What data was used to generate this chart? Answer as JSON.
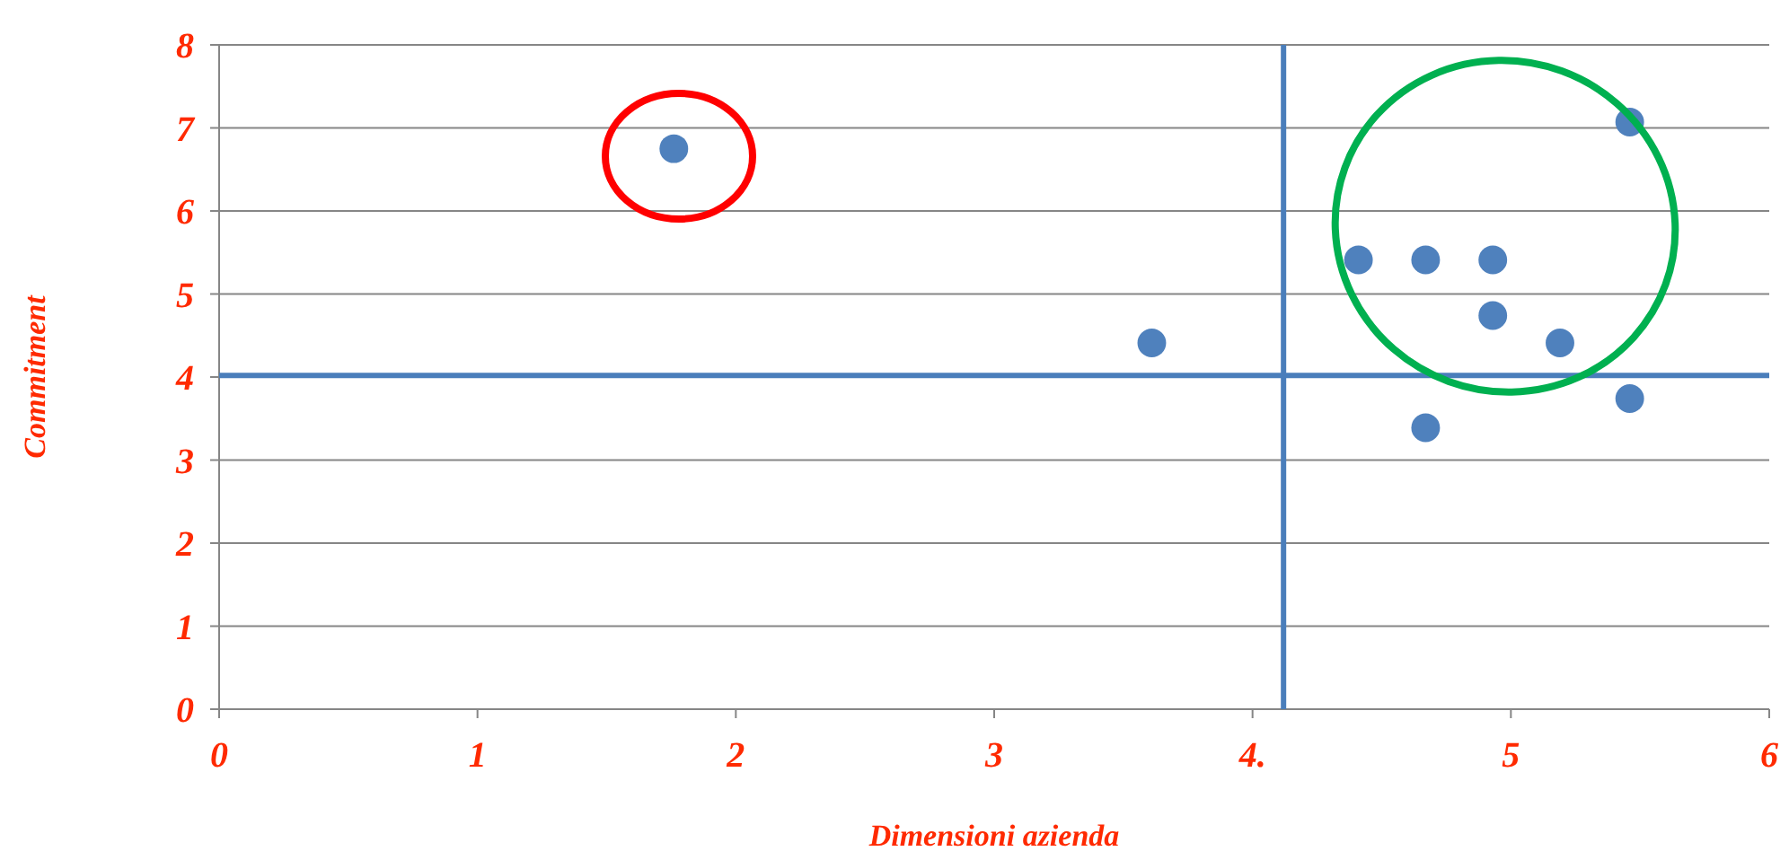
{
  "chart_data": {
    "type": "scatter",
    "xlabel": "Dimensioni azienda",
    "ylabel": "Commitment",
    "x": [
      1.76,
      3.61,
      4.41,
      4.67,
      4.93,
      4.93,
      5.19,
      5.46,
      5.46,
      4.67
    ],
    "series": [
      {
        "color": "#4f81bd",
        "values": [
          6.75,
          4.41,
          5.41,
          5.41,
          5.41,
          4.74,
          4.41,
          7.07,
          3.74,
          3.39
        ]
      }
    ],
    "xlim": [
      0,
      6
    ],
    "xticks": [
      0,
      1,
      2,
      3,
      {
        "value": 4,
        "label": "4."
      },
      5,
      6
    ],
    "ylim": [
      0,
      8
    ],
    "yticks": [
      0,
      1,
      2,
      3,
      4,
      5,
      6,
      7,
      8
    ],
    "grid": "y",
    "marker": "circle",
    "ref_lines": [
      {
        "axis": "x",
        "value": 4.12,
        "color": "#4a7ebb"
      },
      {
        "axis": "y",
        "value": 4.02,
        "color": "#4a7ebb"
      }
    ]
  }
}
